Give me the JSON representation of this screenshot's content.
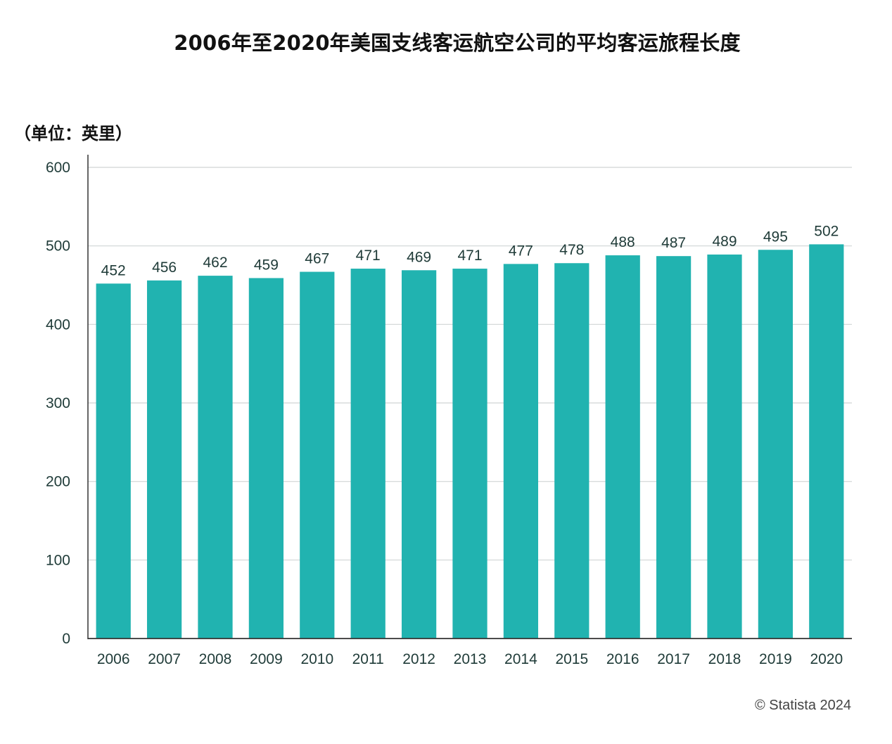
{
  "title": "2006年至2020年美国支线客运航空公司的平均客运旅程长度",
  "unit_label": "（单位：英里）",
  "copyright": "© Statista 2024",
  "colors": {
    "bar": "#21b3b0",
    "grid": "#d0d4d4",
    "axis": "#333333"
  },
  "chart_data": {
    "type": "bar",
    "title": "2006年至2020年美国支线客运航空公司的平均客运旅程长度",
    "ylabel": "（单位：英里）",
    "xlabel": "",
    "categories": [
      "2006",
      "2007",
      "2008",
      "2009",
      "2010",
      "2011",
      "2012",
      "2013",
      "2014",
      "2015",
      "2016",
      "2017",
      "2018",
      "2019",
      "2020"
    ],
    "values": [
      452,
      456,
      462,
      459,
      467,
      471,
      469,
      471,
      477,
      478,
      488,
      487,
      489,
      495,
      502
    ],
    "ylim": [
      0,
      600
    ],
    "yticks": [
      0,
      100,
      200,
      300,
      400,
      500,
      600
    ],
    "grid": true,
    "data_labels": true
  }
}
